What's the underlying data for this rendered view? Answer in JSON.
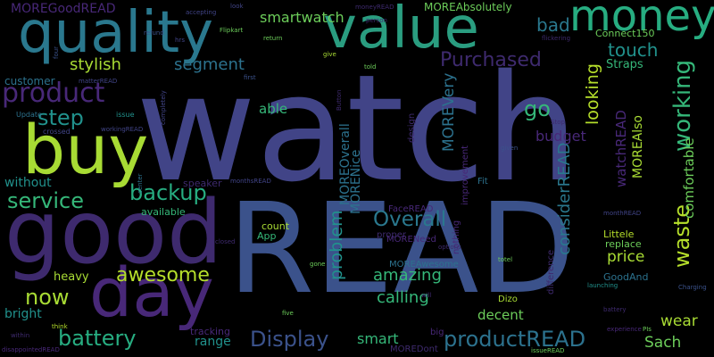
{
  "words": [
    {
      "t": "watch",
      "c": "#414487"
    },
    {
      "t": "READ",
      "c": "#3b528b"
    },
    {
      "t": "good",
      "c": "#3e2a6e"
    },
    {
      "t": "quality",
      "c": "#2a788e"
    },
    {
      "t": "value",
      "c": "#2a9d80"
    },
    {
      "t": "day",
      "c": "#482878"
    },
    {
      "t": "buy",
      "c": "#a8db34"
    },
    {
      "t": "money",
      "c": "#27ad81"
    },
    {
      "t": "product",
      "c": "#482878"
    },
    {
      "t": "battery",
      "c": "#27ad81"
    },
    {
      "t": "Display",
      "c": "#3b528b"
    },
    {
      "t": "productREAD",
      "c": "#2c728e"
    },
    {
      "t": "service",
      "c": "#35b779"
    },
    {
      "t": "backup",
      "c": "#27ad81"
    },
    {
      "t": "awesome",
      "c": "#b5de2b"
    },
    {
      "t": "Overall",
      "c": "#2a788e"
    },
    {
      "t": "now",
      "c": "#a8db34"
    },
    {
      "t": "step",
      "c": "#21918c"
    },
    {
      "t": "working",
      "c": "#35b779"
    },
    {
      "t": "waste",
      "c": "#b5de2b"
    },
    {
      "t": "Purchased",
      "c": "#3e2a6e"
    },
    {
      "t": "touch",
      "c": "#21918c"
    },
    {
      "t": "bad",
      "c": "#2a788e"
    },
    {
      "t": "go",
      "c": "#35b779"
    },
    {
      "t": "smartwatch",
      "c": "#6ccd5a"
    },
    {
      "t": "segment",
      "c": "#2c728e"
    },
    {
      "t": "stylish",
      "c": "#a8db34"
    },
    {
      "t": "problem",
      "c": "#21918c"
    },
    {
      "t": "amazing",
      "c": "#35b779"
    },
    {
      "t": "calling",
      "c": "#35b779"
    },
    {
      "t": "considerREAD",
      "c": "#2a788e"
    },
    {
      "t": "looking",
      "c": "#b5de2b"
    },
    {
      "t": "MOREVery",
      "c": "#2c728e"
    },
    {
      "t": "budget",
      "c": "#482878"
    },
    {
      "t": "watchREAD",
      "c": "#482878"
    },
    {
      "t": "MOREAlso",
      "c": "#a8db34"
    },
    {
      "t": "comfortable",
      "c": "#6ccd5a"
    },
    {
      "t": "price",
      "c": "#a8db34"
    },
    {
      "t": "wear",
      "c": "#a8db34"
    },
    {
      "t": "Sach",
      "c": "#6ccd5a"
    },
    {
      "t": "smart",
      "c": "#35b779"
    },
    {
      "t": "decent",
      "c": "#6ccd5a"
    },
    {
      "t": "range",
      "c": "#21918c"
    },
    {
      "t": "bright",
      "c": "#21918c"
    },
    {
      "t": "heavy",
      "c": "#a8db34"
    },
    {
      "t": "without",
      "c": "#21918c"
    },
    {
      "t": "able",
      "c": "#35b779"
    },
    {
      "t": "MOREOverall",
      "c": "#2c728e"
    },
    {
      "t": "MORENice",
      "c": "#2c728e"
    },
    {
      "t": "MOREGoodREAD",
      "c": "#482878"
    },
    {
      "t": "MOREAbsolutely",
      "c": "#6ccd5a"
    },
    {
      "t": "Connect150",
      "c": "#6ccd5a"
    },
    {
      "t": "Straps",
      "c": "#35b779"
    },
    {
      "t": "customer",
      "c": "#2c728e"
    },
    {
      "t": "available",
      "c": "#35b779"
    },
    {
      "t": "speaker",
      "c": "#3e2a6e"
    },
    {
      "t": "App",
      "c": "#35b779"
    },
    {
      "t": "count",
      "c": "#a8db34"
    },
    {
      "t": "tracking",
      "c": "#482878"
    },
    {
      "t": "big",
      "c": "#482878"
    },
    {
      "t": "MOREDont",
      "c": "#3e2a6e"
    },
    {
      "t": "Dizo",
      "c": "#a8db34"
    },
    {
      "t": "MOREAwesome",
      "c": "#2c728e"
    },
    {
      "t": "MORENeed",
      "c": "#482878"
    },
    {
      "t": "GoodAnd",
      "c": "#2c728e"
    },
    {
      "t": "Littele",
      "c": "#b5de2b"
    },
    {
      "t": "replace",
      "c": "#6ccd5a"
    },
    {
      "t": "difference",
      "c": "#3e2a6e"
    },
    {
      "t": "Fit",
      "c": "#2c728e"
    },
    {
      "t": "FaceREAD",
      "c": "#482878"
    },
    {
      "t": "nothing",
      "c": "#482878"
    },
    {
      "t": "design",
      "c": "#3e2a6e"
    },
    {
      "t": "improvement",
      "c": "#482878"
    },
    {
      "t": "proper",
      "c": "#3e2a6e"
    },
    {
      "t": "Update",
      "c": "#2c728e"
    },
    {
      "t": "issue",
      "c": "#21918c"
    },
    {
      "t": "crossed",
      "c": "#414487"
    },
    {
      "t": "matterREAD",
      "c": "#414487"
    },
    {
      "t": "workingREAD",
      "c": "#414487"
    },
    {
      "t": "monthsREAD",
      "c": "#414487"
    },
    {
      "t": "center",
      "c": "#2c728e"
    },
    {
      "t": "five",
      "c": "#6ccd5a"
    },
    {
      "t": "within",
      "c": "#3e2a6e"
    },
    {
      "t": "disappointedREAD",
      "c": "#482878"
    },
    {
      "t": "think",
      "c": "#b5de2b"
    },
    {
      "t": "tracking",
      "c": "#482878"
    },
    {
      "t": "closed",
      "c": "#3e2a6e"
    },
    {
      "t": "gone",
      "c": "#6ccd5a"
    },
    {
      "t": "options",
      "c": "#3e2a6e"
    },
    {
      "t": "totel",
      "c": "#6ccd5a"
    },
    {
      "t": "issueREAD",
      "c": "#6ccd5a"
    },
    {
      "t": "battery",
      "c": "#3e2a6e"
    },
    {
      "t": "Charging",
      "c": "#3b528b"
    },
    {
      "t": "experience",
      "c": "#482878"
    },
    {
      "t": "PIs",
      "c": "#6ccd5a"
    },
    {
      "t": "launching",
      "c": "#21918c"
    },
    {
      "t": "monthREAD",
      "c": "#414487"
    },
    {
      "t": "given",
      "c": "#3b528b"
    },
    {
      "t": "Stop",
      "c": "#3e2a6e"
    },
    {
      "t": "flickering",
      "c": "#3e2a6e"
    },
    {
      "t": "accepting",
      "c": "#414487"
    },
    {
      "t": "refund",
      "c": "#3b528b"
    },
    {
      "t": "hrs",
      "c": "#414487"
    },
    {
      "t": "Flipkart",
      "c": "#6ccd5a"
    },
    {
      "t": "return",
      "c": "#6ccd5a"
    },
    {
      "t": "look",
      "c": "#414487"
    },
    {
      "t": "moneyREAD",
      "c": "#3e2a6e"
    },
    {
      "t": "give",
      "c": "#a8db34"
    },
    {
      "t": "first",
      "c": "#3b528b"
    },
    {
      "t": "told",
      "c": "#6ccd5a"
    },
    {
      "t": "person",
      "c": "#3e2a6e"
    },
    {
      "t": "four",
      "c": "#3b528b"
    },
    {
      "t": "completely",
      "c": "#414487"
    },
    {
      "t": "Button",
      "c": "#3e2a6e"
    },
    {
      "t": "will",
      "c": "#3e2a6e"
    }
  ]
}
